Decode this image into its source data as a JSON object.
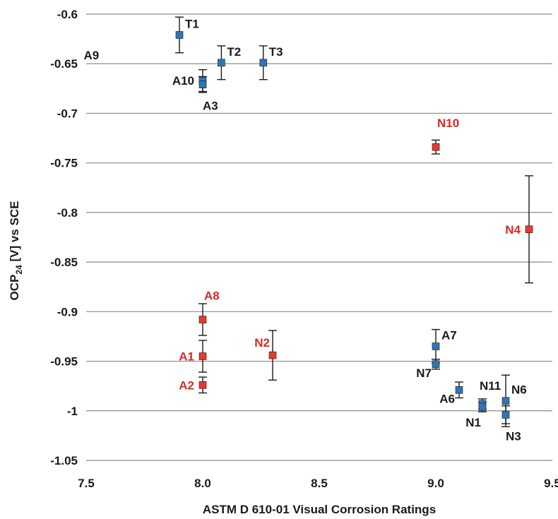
{
  "chart_data": {
    "type": "scatter",
    "xlabel": "ASTM D 610-01 Visual Corrosion Ratings",
    "ylabel_main": "OCP",
    "ylabel_sub": "24",
    "ylabel_rest": " [V] vs SCE",
    "xlim": [
      7.5,
      9.5
    ],
    "ylim": [
      -1.05,
      -0.6
    ],
    "x_ticks": [
      "7.5",
      "8.0",
      "8.5",
      "9.0",
      "9.5"
    ],
    "x_tick_values": [
      7.5,
      8.0,
      8.5,
      9.0,
      9.5
    ],
    "y_ticks": [
      "-0.6",
      "-0.65",
      "-0.7",
      "-0.75",
      "-0.8",
      "-0.85",
      "-0.9",
      "-0.95",
      "-1",
      "-1.05"
    ],
    "y_tick_values": [
      -0.6,
      -0.65,
      -0.7,
      -0.75,
      -0.8,
      -0.85,
      -0.9,
      -0.95,
      -1.0,
      -1.05
    ],
    "grid": "horizontal",
    "colors": {
      "blue": "#2e75b6",
      "red": "#e8392e",
      "black_label": "#1a1a1a",
      "red_label": "#d62a22",
      "grid": "#8c8c8c",
      "errorbar": "#1a1a1a"
    },
    "points": [
      {
        "label": "T1",
        "x": 7.9,
        "y": -0.621,
        "err": 0.018,
        "color": "blue",
        "label_pos": "upper-right"
      },
      {
        "label": "T2",
        "x": 8.08,
        "y": -0.649,
        "err": 0.017,
        "color": "blue",
        "label_pos": "upper-right"
      },
      {
        "label": "T3",
        "x": 8.26,
        "y": -0.649,
        "err": 0.017,
        "color": "blue",
        "label_pos": "upper-right"
      },
      {
        "label": "A10",
        "x": 8.0,
        "y": -0.667,
        "err": 0.011,
        "color": "blue",
        "label_pos": "left"
      },
      {
        "label": "A3",
        "x": 8.0,
        "y": -0.671,
        "err": 0.008,
        "color": "blue",
        "label_pos": "below-right"
      },
      {
        "label": "N10",
        "x": 9.0,
        "y": -0.734,
        "err": 0.007,
        "color": "red",
        "label_pos": "above-right"
      },
      {
        "label": "N4",
        "x": 9.4,
        "y": -0.817,
        "err": 0.054,
        "color": "red",
        "label_pos": "left"
      },
      {
        "label": "A8",
        "x": 8.0,
        "y": -0.908,
        "err": 0.016,
        "color": "red",
        "label_pos": "above-right"
      },
      {
        "label": "A1",
        "x": 8.0,
        "y": -0.945,
        "err": 0.016,
        "color": "red",
        "label_pos": "left"
      },
      {
        "label": "A2",
        "x": 8.0,
        "y": -0.974,
        "err": 0.008,
        "color": "red",
        "label_pos": "left"
      },
      {
        "label": "N2",
        "x": 8.3,
        "y": -0.944,
        "err": 0.025,
        "color": "red",
        "label_pos": "upper-left"
      },
      {
        "label": "A7",
        "x": 9.0,
        "y": -0.935,
        "err": 0.017,
        "color": "blue",
        "label_pos": "upper-right"
      },
      {
        "label": "N7",
        "x": 9.0,
        "y": -0.953,
        "err": 0.005,
        "color": "blue",
        "label_pos": "lower-left"
      },
      {
        "label": "A6",
        "x": 9.1,
        "y": -0.979,
        "err": 0.008,
        "color": "blue",
        "label_pos": "lower-left"
      },
      {
        "label": "N11",
        "x": 9.2,
        "y": -0.993,
        "err": 0.005,
        "color": "blue",
        "label_pos": "above"
      },
      {
        "label": "N1",
        "x": 9.2,
        "y": -0.996,
        "err": 0.005,
        "color": "blue",
        "label_pos": "below-left"
      },
      {
        "label": "N6",
        "x": 9.3,
        "y": -0.99,
        "err": 0.026,
        "color": "blue",
        "label_pos": "upper-right"
      },
      {
        "label": "N3",
        "x": 9.3,
        "y": -1.004,
        "err": 0.009,
        "color": "blue",
        "label_pos": "below-right"
      }
    ],
    "annotations": [
      {
        "text": "A9",
        "x": 7.55,
        "y": -0.625,
        "color": "black_label"
      }
    ]
  }
}
